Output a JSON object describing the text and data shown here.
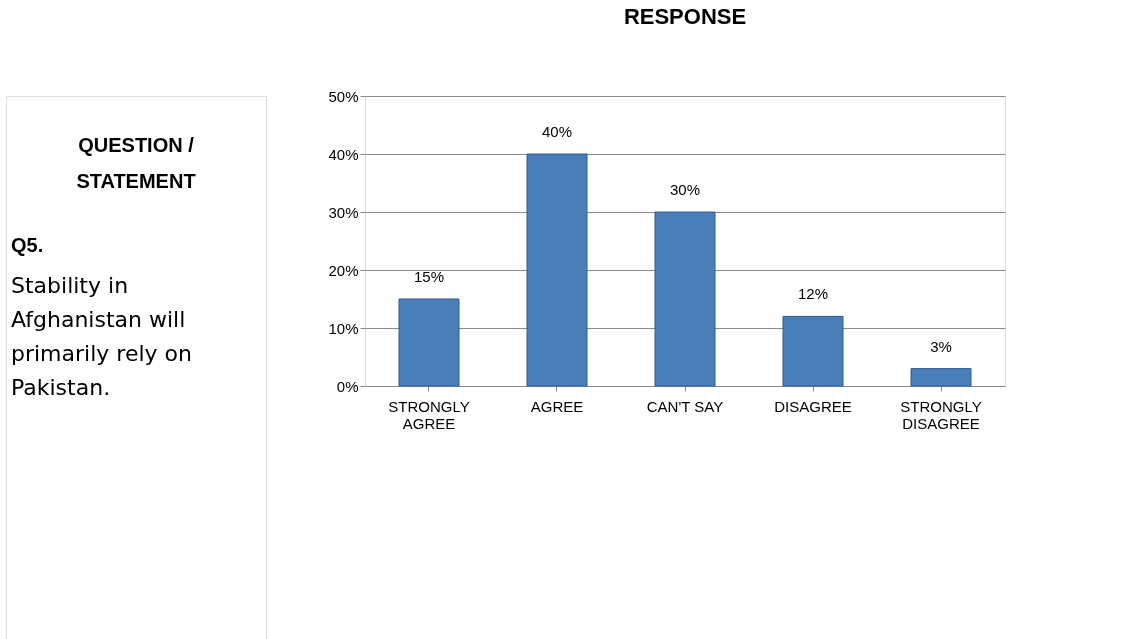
{
  "chart_data": {
    "type": "bar",
    "title": "Stability in Afghanistan will primarily rely on Pakistan.",
    "annotations": [
      "QUESTION / STATEMENT",
      "RESPONSE",
      "Q5."
    ],
    "categories": [
      "STRONGLY AGREE",
      "AGREE",
      "CAN'T SAY",
      "DISAGREE",
      "STRONGLY DISAGREE"
    ],
    "values": [
      15,
      40,
      30,
      12,
      3
    ],
    "value_labels": [
      "15%",
      "40%",
      "30%",
      "12%",
      "3%"
    ],
    "color": "#4a7ebb",
    "ylim": [
      0,
      50
    ],
    "yticks": [
      {
        "value": 0,
        "label": "0%"
      },
      {
        "value": 10,
        "label": "10%"
      },
      {
        "value": 20,
        "label": "20%"
      },
      {
        "value": 30,
        "label": "30%"
      },
      {
        "value": 40,
        "label": "40%"
      },
      {
        "value": 50,
        "label": "50%"
      }
    ],
    "grid": "y"
  }
}
